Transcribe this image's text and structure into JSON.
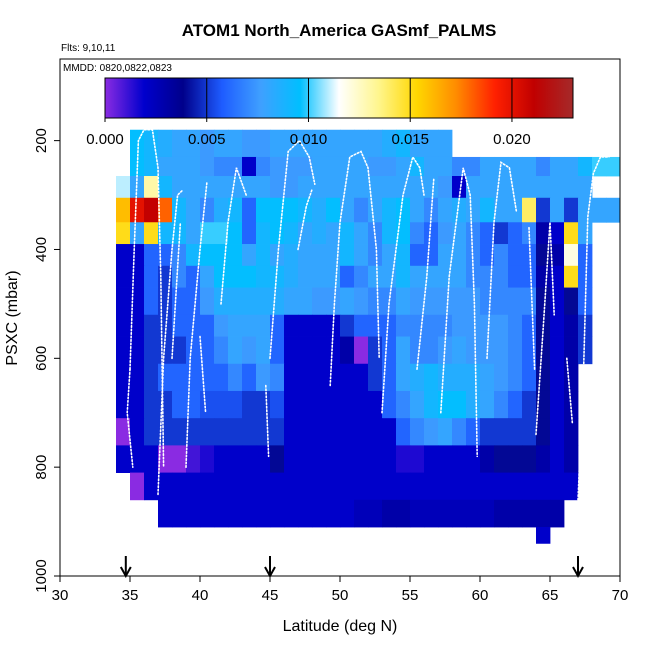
{
  "chart_data": {
    "type": "heatmap",
    "title": "ATOM1 North_America GASmf_PALMS",
    "annotations": {
      "flights": "Flts: 9,10,11",
      "dates": "MMDD: 0820,0822,0823"
    },
    "xlabel": "Latitude (deg N)",
    "ylabel": "PSXC (mbar)",
    "xlim": [
      30,
      70
    ],
    "ylim": [
      1000,
      50
    ],
    "y_reversed": true,
    "x_ticks": [
      30,
      35,
      40,
      45,
      50,
      55,
      60,
      65,
      70
    ],
    "x_tick_labels": [
      "30",
      "35",
      "40",
      "45",
      "50",
      "55",
      "60",
      "65",
      "70"
    ],
    "y_ticks": [
      200,
      400,
      600,
      800,
      1000
    ],
    "y_tick_labels": [
      "200",
      "400",
      "600",
      "800",
      "1000"
    ],
    "colorbar": {
      "min": 0.0,
      "max": 0.023,
      "ticks": [
        0.0,
        0.005,
        0.01,
        0.015,
        0.02
      ],
      "tick_labels": [
        "0.000",
        "0.005",
        "0.010",
        "0.015",
        "0.020"
      ],
      "colors": [
        "#8a2be2",
        "#0000cd",
        "#00008b",
        "#1e5cff",
        "#3fa0ff",
        "#00bfff",
        "#ffffff",
        "#fff68f",
        "#ffd700",
        "#ff8c00",
        "#ff2000",
        "#c00000",
        "#a52a2a"
      ]
    },
    "marker_latitudes": [
      34.7,
      45.0,
      67.0
    ],
    "rows": [
      {
        "p_top": 180,
        "p_bot": 230,
        "x0": 35.0,
        "dx": 1.0,
        "values": [
          0.0095,
          0.009,
          0.0085,
          0.008,
          0.008,
          0.0075,
          0.008,
          0.008,
          0.0075,
          0.0075,
          0.008,
          0.008,
          0.008,
          0.008,
          0.008,
          0.008,
          0.008,
          0.008,
          0.0085,
          0.009,
          0.008,
          0.008,
          0.008
        ]
      },
      {
        "p_top": 230,
        "p_bot": 265,
        "x0": 35.0,
        "dx": 1.0,
        "values": [
          0.0095,
          0.009,
          0.008,
          0.008,
          0.008,
          0.0075,
          0.007,
          0.007,
          0.002,
          0.007,
          0.0075,
          0.0075,
          0.0075,
          0.008,
          0.008,
          0.008,
          0.008,
          0.0075,
          0.0075,
          0.008,
          0.009,
          0.008,
          0.008,
          0.007,
          0.007,
          0.008,
          0.008,
          0.008,
          0.008,
          0.007,
          0.008,
          0.008,
          0.009,
          0.01,
          0.01
        ]
      },
      {
        "p_top": 265,
        "p_bot": 305,
        "x0": 34.0,
        "dx": 1.0,
        "values": [
          0.011,
          0.008,
          0.013,
          0.009,
          0.008,
          0.008,
          0.008,
          0.008,
          0.008,
          0.008,
          0.008,
          0.0075,
          0.0075,
          0.008,
          0.008,
          0.008,
          0.008,
          0.008,
          0.008,
          0.008,
          0.008,
          0.008,
          0.008,
          0.0075,
          0.002,
          0.008,
          0.008,
          0.008,
          0.008,
          0.008,
          0.008,
          0.008,
          0.008,
          0.008
        ]
      },
      {
        "p_top": 305,
        "p_bot": 350,
        "x0": 34.0,
        "dx": 1.0,
        "values": [
          0.016,
          0.02,
          0.021,
          0.018,
          0.009,
          0.008,
          0.007,
          0.0085,
          0.009,
          0.006,
          0.0095,
          0.0095,
          0.0095,
          0.009,
          0.0085,
          0.0095,
          0.008,
          0.007,
          0.008,
          0.009,
          0.0095,
          0.008,
          0.007,
          0.008,
          0.0085,
          0.008,
          0.009,
          0.008,
          0.008,
          0.014,
          0.005,
          0.008,
          0.005,
          0.008,
          0.008,
          0.008
        ]
      },
      {
        "p_top": 350,
        "p_bot": 390,
        "x0": 34.0,
        "dx": 1.0,
        "values": [
          0.015,
          0.008,
          0.015,
          0.009,
          0.009,
          0.008,
          0.01,
          0.01,
          0.0095,
          0.006,
          0.009,
          0.0095,
          0.009,
          0.008,
          0.0085,
          0.008,
          0.009,
          0.008,
          0.007,
          0.009,
          0.0095,
          0.007,
          0.006,
          0.0075,
          0.008,
          0.007,
          0.006,
          0.005,
          0.006,
          0.007,
          0.003,
          0.002,
          0.015,
          0.008
        ]
      },
      {
        "p_top": 390,
        "p_bot": 430,
        "x0": 34.0,
        "dx": 1.0,
        "values": [
          0.002,
          0.002,
          0.006,
          0.006,
          0.007,
          0.009,
          0.0095,
          0.0095,
          0.0095,
          0.008,
          0.009,
          0.008,
          0.0085,
          0.008,
          0.008,
          0.008,
          0.009,
          0.008,
          0.007,
          0.008,
          0.009,
          0.006,
          0.006,
          0.008,
          0.008,
          0.007,
          0.006,
          0.007,
          0.006,
          0.006,
          0.004,
          0.003,
          0.012,
          0.006
        ]
      },
      {
        "p_top": 430,
        "p_bot": 470,
        "x0": 34.0,
        "dx": 1.0,
        "values": [
          0.002,
          0.002,
          0.006,
          0.005,
          0.007,
          0.006,
          0.008,
          0.0095,
          0.0095,
          0.0095,
          0.009,
          0.009,
          0.0085,
          0.008,
          0.008,
          0.008,
          0.006,
          0.007,
          0.008,
          0.008,
          0.009,
          0.008,
          0.008,
          0.008,
          0.008,
          0.007,
          0.007,
          0.007,
          0.006,
          0.006,
          0.003,
          0.002,
          0.015,
          0.006
        ]
      },
      {
        "p_top": 470,
        "p_bot": 520,
        "x0": 34.0,
        "dx": 1.0,
        "values": [
          0.002,
          0.002,
          0.006,
          0.005,
          0.006,
          0.006,
          0.0075,
          0.0085,
          0.0085,
          0.0085,
          0.0085,
          0.0085,
          0.008,
          0.008,
          0.0075,
          0.0075,
          0.008,
          0.0075,
          0.007,
          0.007,
          0.008,
          0.0075,
          0.0075,
          0.0075,
          0.0075,
          0.0075,
          0.007,
          0.007,
          0.007,
          0.007,
          0.004,
          0.002,
          0.004,
          0.006
        ]
      },
      {
        "p_top": 520,
        "p_bot": 560,
        "x0": 34.0,
        "dx": 1.0,
        "values": [
          0.002,
          0.002,
          0.005,
          0.005,
          0.006,
          0.006,
          0.006,
          0.0075,
          0.008,
          0.008,
          0.008,
          0.006,
          0.002,
          0.002,
          0.002,
          0.002,
          0.005,
          0.006,
          0.006,
          0.006,
          0.007,
          0.007,
          0.007,
          0.007,
          0.0075,
          0.0075,
          0.0075,
          0.0075,
          0.007,
          0.006,
          0.004,
          0.002,
          0.003,
          0.005
        ]
      },
      {
        "p_top": 560,
        "p_bot": 610,
        "x0": 34.0,
        "dx": 1.0,
        "values": [
          0.002,
          0.002,
          0.005,
          0.005,
          0.005,
          0.006,
          0.006,
          0.007,
          0.008,
          0.0075,
          0.008,
          0.006,
          0.002,
          0.002,
          0.002,
          0.002,
          0.003,
          0.0,
          0.005,
          0.006,
          0.008,
          0.007,
          0.007,
          0.0075,
          0.008,
          0.0075,
          0.0075,
          0.0075,
          0.007,
          0.006,
          0.004,
          0.002,
          0.003,
          0.005
        ]
      },
      {
        "p_top": 610,
        "p_bot": 660,
        "x0": 34.0,
        "dx": 1.0,
        "values": [
          0.002,
          0.002,
          0.005,
          0.006,
          0.006,
          0.006,
          0.006,
          0.006,
          0.007,
          0.006,
          0.0075,
          0.007,
          0.002,
          0.002,
          0.002,
          0.002,
          0.002,
          0.002,
          0.005,
          0.006,
          0.008,
          0.0085,
          0.009,
          0.0085,
          0.0085,
          0.0085,
          0.008,
          0.0075,
          0.007,
          0.006,
          0.004,
          0.002,
          0.003
        ]
      },
      {
        "p_top": 660,
        "p_bot": 710,
        "x0": 34.0,
        "dx": 1.0,
        "values": [
          0.002,
          0.002,
          0.005,
          0.005,
          0.006,
          0.006,
          0.0055,
          0.0055,
          0.0055,
          0.005,
          0.005,
          0.0055,
          0.002,
          0.002,
          0.002,
          0.002,
          0.002,
          0.002,
          0.002,
          0.006,
          0.007,
          0.008,
          0.009,
          0.0095,
          0.0095,
          0.0085,
          0.008,
          0.007,
          0.006,
          0.005,
          0.004,
          0.002,
          0.003
        ]
      },
      {
        "p_top": 710,
        "p_bot": 760,
        "x0": 34.0,
        "dx": 1.0,
        "values": [
          0.0,
          0.002,
          0.005,
          0.005,
          0.005,
          0.005,
          0.005,
          0.005,
          0.005,
          0.005,
          0.005,
          0.005,
          0.002,
          0.002,
          0.002,
          0.002,
          0.002,
          0.002,
          0.002,
          0.002,
          0.006,
          0.007,
          0.0075,
          0.008,
          0.007,
          0.006,
          0.005,
          0.005,
          0.005,
          0.005,
          0.004,
          0.002,
          0.003
        ]
      },
      {
        "p_top": 760,
        "p_bot": 810,
        "x0": 34.0,
        "dx": 1.0,
        "values": [
          0.002,
          0.002,
          0.002,
          0.0,
          0.0,
          0.001,
          0.0015,
          0.002,
          0.002,
          0.002,
          0.002,
          0.004,
          0.002,
          0.002,
          0.002,
          0.002,
          0.002,
          0.002,
          0.002,
          0.002,
          0.0015,
          0.0015,
          0.002,
          0.002,
          0.002,
          0.002,
          0.003,
          0.004,
          0.004,
          0.004,
          0.003,
          0.002,
          0.003
        ]
      },
      {
        "p_top": 810,
        "p_bot": 860,
        "x0": 35.0,
        "dx": 1.0,
        "values": [
          0.0,
          0.002,
          0.002,
          0.002,
          0.002,
          0.002,
          0.002,
          0.002,
          0.002,
          0.002,
          0.002,
          0.002,
          0.002,
          0.002,
          0.002,
          0.002,
          0.002,
          0.002,
          0.002,
          0.002,
          0.002,
          0.002,
          0.002,
          0.002,
          0.002,
          0.002,
          0.002,
          0.002,
          0.002,
          0.002,
          0.002,
          0.002
        ]
      },
      {
        "p_top": 860,
        "p_bot": 910,
        "x0": 37.0,
        "dx": 1.0,
        "values": [
          0.002,
          0.002,
          0.002,
          0.002,
          0.002,
          0.002,
          0.002,
          0.002,
          0.002,
          0.002,
          0.002,
          0.002,
          0.002,
          0.002,
          0.0025,
          0.0025,
          0.003,
          0.003,
          0.0025,
          0.0025,
          0.0025,
          0.0025,
          0.0025,
          0.0025,
          0.003,
          0.003,
          0.003,
          0.003,
          0.003
        ]
      },
      {
        "p_top": 910,
        "p_bot": 940,
        "x0": 64.0,
        "dx": 1.0,
        "values": [
          0.002
        ]
      }
    ],
    "flight_tracks": [
      [
        [
          35.0,
          620
        ],
        [
          35.3,
          400
        ],
        [
          35.6,
          200
        ],
        [
          36.0,
          180
        ],
        [
          36.6,
          180
        ],
        [
          37.0,
          250
        ],
        [
          37.2,
          450
        ],
        [
          37.4,
          800
        ]
      ],
      [
        [
          35.0,
          620
        ],
        [
          34.8,
          700
        ],
        [
          35.2,
          800
        ]
      ],
      [
        [
          37.0,
          850
        ],
        [
          37.4,
          600
        ],
        [
          38.0,
          400
        ],
        [
          38.4,
          300
        ],
        [
          38.8,
          290
        ]
      ],
      [
        [
          38.0,
          600
        ],
        [
          38.6,
          350
        ]
      ],
      [
        [
          39.0,
          800
        ],
        [
          39.3,
          600
        ],
        [
          40.0,
          400
        ],
        [
          40.5,
          275
        ]
      ],
      [
        [
          40.0,
          560
        ],
        [
          40.4,
          700
        ]
      ],
      [
        [
          41.5,
          500
        ],
        [
          42.0,
          350
        ],
        [
          42.6,
          250
        ],
        [
          43.3,
          300
        ]
      ],
      [
        [
          44.7,
          650
        ],
        [
          44.9,
          780
        ]
      ],
      [
        [
          45.0,
          600
        ],
        [
          45.6,
          400
        ],
        [
          46.3,
          220
        ],
        [
          47.1,
          200
        ],
        [
          47.8,
          230
        ],
        [
          48.2,
          280
        ]
      ],
      [
        [
          47.0,
          400
        ],
        [
          47.6,
          320
        ],
        [
          48.0,
          290
        ]
      ],
      [
        [
          49.3,
          650
        ],
        [
          49.6,
          500
        ],
        [
          50.0,
          350
        ],
        [
          50.7,
          230
        ],
        [
          51.5,
          220
        ],
        [
          52.0,
          250
        ],
        [
          52.6,
          400
        ],
        [
          52.8,
          600
        ]
      ],
      [
        [
          53.0,
          700
        ],
        [
          53.5,
          500
        ],
        [
          54.5,
          300
        ],
        [
          55.2,
          230
        ],
        [
          55.7,
          250
        ],
        [
          56.0,
          300
        ]
      ],
      [
        [
          55.5,
          620
        ],
        [
          56.2,
          450
        ],
        [
          56.7,
          270
        ]
      ],
      [
        [
          57.2,
          700
        ],
        [
          57.8,
          450
        ],
        [
          58.8,
          250
        ],
        [
          59.3,
          300
        ],
        [
          59.6,
          500
        ],
        [
          59.8,
          780
        ]
      ],
      [
        [
          60.5,
          600
        ],
        [
          61.0,
          350
        ],
        [
          61.5,
          240
        ],
        [
          62.1,
          250
        ],
        [
          62.6,
          330
        ]
      ],
      [
        [
          63.5,
          360
        ],
        [
          63.9,
          620
        ]
      ],
      [
        [
          64.0,
          740
        ],
        [
          64.5,
          550
        ],
        [
          65.0,
          350
        ],
        [
          65.3,
          520
        ]
      ],
      [
        [
          67.0,
          860
        ],
        [
          67.4,
          620
        ],
        [
          67.7,
          340
        ],
        [
          68.1,
          260
        ],
        [
          68.6,
          230
        ],
        [
          69.2,
          230
        ],
        [
          69.8,
          210
        ]
      ],
      [
        [
          66.2,
          600
        ],
        [
          66.6,
          720
        ]
      ]
    ]
  }
}
